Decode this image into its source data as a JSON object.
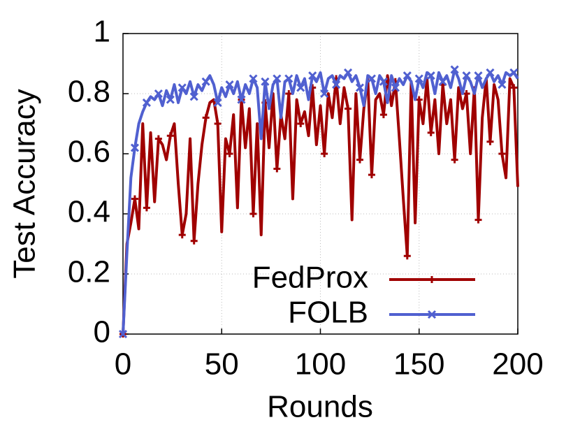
{
  "chart_data": {
    "type": "line",
    "xlabel": "Rounds",
    "ylabel": "Test Accuracy",
    "x": [
      0,
      2,
      4,
      6,
      8,
      10,
      12,
      14,
      16,
      18,
      20,
      22,
      24,
      26,
      28,
      30,
      32,
      34,
      36,
      38,
      40,
      42,
      44,
      46,
      48,
      50,
      52,
      54,
      56,
      58,
      60,
      62,
      64,
      66,
      68,
      70,
      72,
      74,
      76,
      78,
      80,
      82,
      84,
      86,
      88,
      90,
      92,
      94,
      96,
      98,
      100,
      102,
      104,
      106,
      108,
      110,
      112,
      114,
      116,
      118,
      120,
      122,
      124,
      126,
      128,
      130,
      132,
      134,
      136,
      138,
      140,
      142,
      144,
      146,
      148,
      150,
      152,
      154,
      156,
      158,
      160,
      162,
      164,
      166,
      168,
      170,
      172,
      174,
      176,
      178,
      180,
      182,
      184,
      186,
      188,
      190,
      192,
      194,
      196,
      198,
      200
    ],
    "series": [
      {
        "name": "FedProx",
        "color": "#a00000",
        "marker": "plus",
        "values": [
          0,
          0.3,
          0.37,
          0.45,
          0.35,
          0.7,
          0.42,
          0.67,
          0.44,
          0.65,
          0.63,
          0.58,
          0.66,
          0.7,
          0.5,
          0.33,
          0.4,
          0.65,
          0.31,
          0.5,
          0.63,
          0.72,
          0.77,
          0.78,
          0.7,
          0.34,
          0.65,
          0.6,
          0.73,
          0.42,
          0.78,
          0.62,
          0.75,
          0.4,
          0.7,
          0.33,
          0.77,
          0.62,
          0.8,
          0.55,
          0.73,
          0.65,
          0.8,
          0.45,
          0.78,
          0.7,
          0.74,
          0.66,
          0.82,
          0.63,
          0.76,
          0.6,
          0.8,
          0.72,
          0.85,
          0.7,
          0.82,
          0.75,
          0.38,
          0.8,
          0.58,
          0.75,
          0.85,
          0.53,
          0.78,
          0.8,
          0.73,
          0.86,
          0.76,
          0.84,
          0.65,
          0.45,
          0.26,
          0.84,
          0.37,
          0.78,
          0.7,
          0.85,
          0.67,
          0.78,
          0.6,
          0.83,
          0.7,
          0.78,
          0.58,
          0.82,
          0.75,
          0.8,
          0.6,
          0.82,
          0.38,
          0.72,
          0.85,
          0.64,
          0.83,
          0.78,
          0.6,
          0.52,
          0.85,
          0.82,
          0.49
        ]
      },
      {
        "name": "FOLB",
        "color": "#5060d0",
        "marker": "cross",
        "values": [
          0,
          0.27,
          0.52,
          0.62,
          0.7,
          0.74,
          0.77,
          0.79,
          0.78,
          0.8,
          0.76,
          0.81,
          0.78,
          0.83,
          0.77,
          0.82,
          0.8,
          0.84,
          0.79,
          0.83,
          0.81,
          0.84,
          0.86,
          0.83,
          0.77,
          0.82,
          0.79,
          0.83,
          0.8,
          0.84,
          0.78,
          0.83,
          0.8,
          0.85,
          0.82,
          0.65,
          0.84,
          0.75,
          0.83,
          0.85,
          0.72,
          0.84,
          0.85,
          0.8,
          0.86,
          0.82,
          0.85,
          0.78,
          0.86,
          0.84,
          0.87,
          0.8,
          0.85,
          0.86,
          0.83,
          0.86,
          0.85,
          0.87,
          0.84,
          0.86,
          0.82,
          0.76,
          0.86,
          0.85,
          0.8,
          0.86,
          0.84,
          0.77,
          0.86,
          0.82,
          0.85,
          0.83,
          0.86,
          0.84,
          0.78,
          0.85,
          0.82,
          0.87,
          0.86,
          0.8,
          0.87,
          0.84,
          0.86,
          0.82,
          0.88,
          0.85,
          0.8,
          0.86,
          0.84,
          0.8,
          0.86,
          0.82,
          0.85,
          0.87,
          0.84,
          0.86,
          0.83,
          0.87,
          0.86,
          0.87,
          0.85
        ]
      }
    ],
    "xlim": [
      0,
      200
    ],
    "xticks": [
      0,
      50,
      100,
      150,
      200
    ],
    "ylim": [
      0,
      1
    ],
    "yticks": [
      0,
      0.2,
      0.4,
      0.6,
      0.8,
      1
    ],
    "grid": true,
    "legend": "lower right"
  }
}
